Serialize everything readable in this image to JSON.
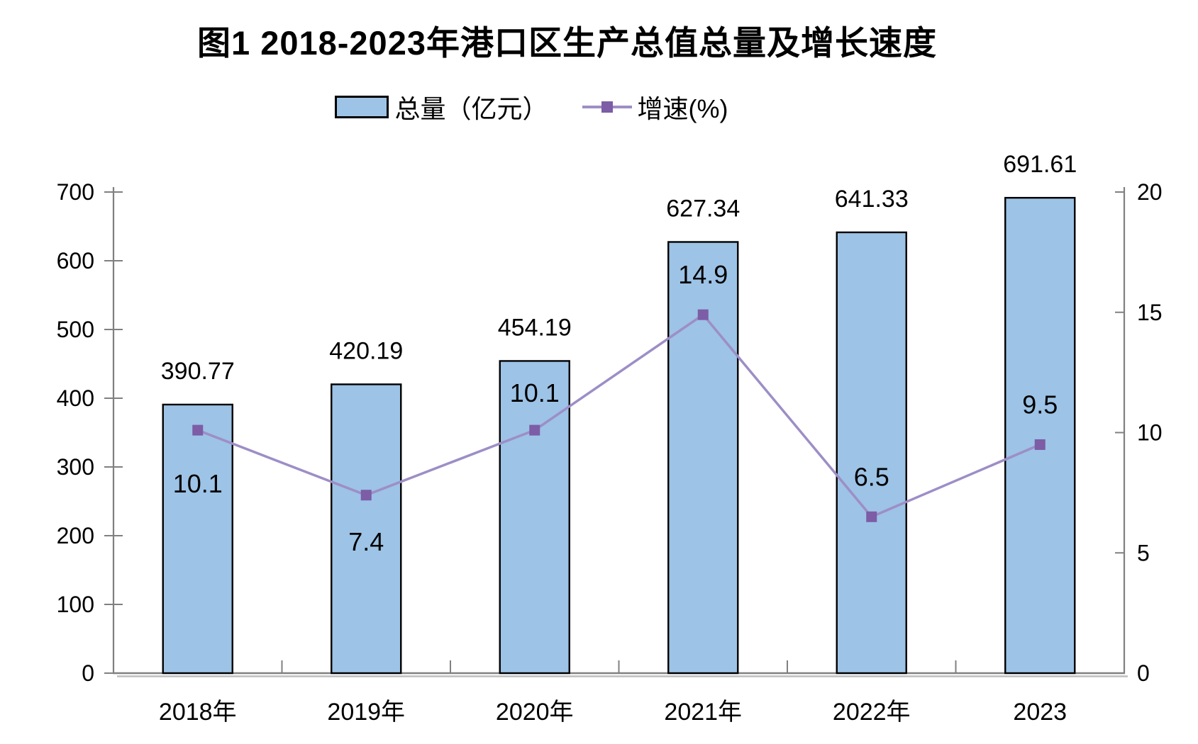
{
  "figure": {
    "title": "图1  2018-2023年港口区生产总值总量及增长速度"
  },
  "legend": {
    "bar_label": "总量（亿元）",
    "line_label": "增速(%)"
  },
  "chart_data": {
    "type": "bar+line",
    "title": "图1  2018-2023年港口区生产总值总量及增长速度",
    "categories": [
      "2018年",
      "2019年",
      "2020年",
      "2021年",
      "2022年",
      "2023"
    ],
    "series": [
      {
        "name": "总量（亿元）",
        "type": "bar",
        "axis": "left",
        "values": [
          390.77,
          420.19,
          454.19,
          627.34,
          641.33,
          691.61
        ],
        "color": "#9DC3E6",
        "border_color": "#000000"
      },
      {
        "name": "增速(%)",
        "type": "line",
        "axis": "right",
        "values": [
          10.1,
          7.4,
          10.1,
          14.9,
          6.5,
          9.5
        ],
        "line_color": "#9D8EC6",
        "marker_color": "#7C5DA6",
        "marker": "square"
      }
    ],
    "data_labels": {
      "bar": [
        "390.77",
        "420.19",
        "454.19",
        "627.34",
        "641.33",
        "691.61"
      ],
      "line": [
        "10.1",
        "7.4",
        "10.1",
        "14.9",
        "6.5",
        "9.5"
      ],
      "line_label_center_offsets": [
        76,
        66,
        -52,
        -56,
        -56,
        -56
      ]
    },
    "left_axis": {
      "min": 0,
      "max": 700,
      "step": 100,
      "ticks": [
        "0",
        "100",
        "200",
        "300",
        "400",
        "500",
        "600",
        "700"
      ]
    },
    "right_axis": {
      "min": 0,
      "max": 20,
      "step": 5,
      "ticks": [
        "0",
        "5",
        "10",
        "15",
        "20"
      ]
    },
    "grid": false,
    "legend_position": "top-center",
    "colors": {
      "axis_line": "#808080",
      "axis_shadow": "#bdbdbd",
      "text": "#000000",
      "background": "#FFFFFF"
    }
  }
}
